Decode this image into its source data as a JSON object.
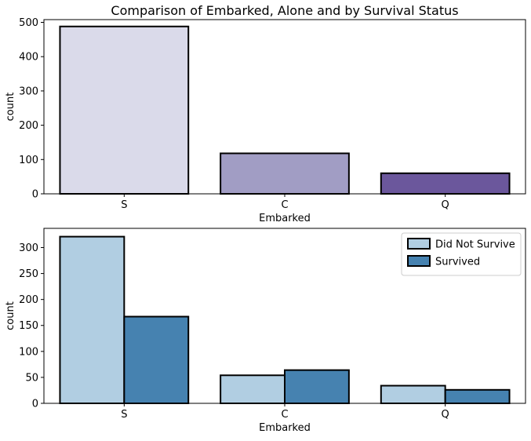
{
  "chart_data": [
    {
      "type": "bar",
      "title": "Comparison of Embarked, Alone and by Survival Status",
      "xlabel": "Embarked",
      "ylabel": "count",
      "categories": [
        "S",
        "C",
        "Q"
      ],
      "values": [
        488,
        118,
        60
      ],
      "bar_colors": [
        "#dadaea",
        "#a19dc4",
        "#6b579c"
      ],
      "ylim": [
        0,
        508
      ],
      "yticks": [
        0,
        100,
        200,
        300,
        400,
        500
      ],
      "grid": false,
      "legend": null
    },
    {
      "type": "bar",
      "title": "",
      "xlabel": "Embarked",
      "ylabel": "count",
      "categories": [
        "S",
        "C",
        "Q"
      ],
      "series": [
        {
          "name": "Did Not Survive",
          "values": [
            321,
            54,
            34
          ],
          "color": "#b1cee2"
        },
        {
          "name": "Survived",
          "values": [
            167,
            64,
            26
          ],
          "color": "#4682b0"
        }
      ],
      "ylim": [
        0,
        337
      ],
      "yticks": [
        0,
        50,
        100,
        150,
        200,
        250,
        300
      ],
      "grid": false,
      "legend_position": "top-right"
    }
  ]
}
